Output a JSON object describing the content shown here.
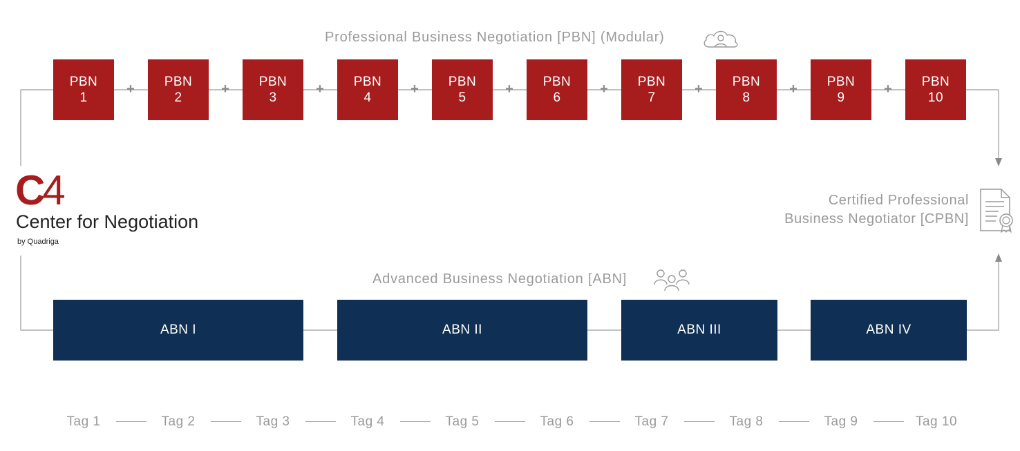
{
  "pbn": {
    "title": "Professional Business Negotiation [PBN] (Modular)",
    "icon": "cloud-user-icon",
    "color": "#a71c1c",
    "modules": [
      {
        "name": "PBN",
        "num": "1"
      },
      {
        "name": "PBN",
        "num": "2"
      },
      {
        "name": "PBN",
        "num": "3"
      },
      {
        "name": "PBN",
        "num": "4"
      },
      {
        "name": "PBN",
        "num": "5"
      },
      {
        "name": "PBN",
        "num": "6"
      },
      {
        "name": "PBN",
        "num": "7"
      },
      {
        "name": "PBN",
        "num": "8"
      },
      {
        "name": "PBN",
        "num": "9"
      },
      {
        "name": "PBN",
        "num": "10"
      }
    ],
    "separator": "+"
  },
  "abn": {
    "title": "Advanced Business Negotiation [ABN]",
    "icon": "group-users-icon",
    "color": "#0f2f55",
    "modules": [
      "ABN I",
      "ABN II",
      "ABN III",
      "ABN IV"
    ]
  },
  "logo": {
    "mark_c": "C",
    "mark_4": "4",
    "name": "Center for Negotiation",
    "byline": "by Quadriga",
    "color": "#a71c1c"
  },
  "certificate": {
    "line1": "Certified Professional",
    "line2": "Business Negotiator [CPBN]",
    "icon": "certificate-document-icon"
  },
  "days": [
    "Tag 1",
    "Tag 2",
    "Tag 3",
    "Tag 4",
    "Tag 5",
    "Tag 6",
    "Tag 7",
    "Tag 8",
    "Tag 9",
    "Tag 10"
  ]
}
